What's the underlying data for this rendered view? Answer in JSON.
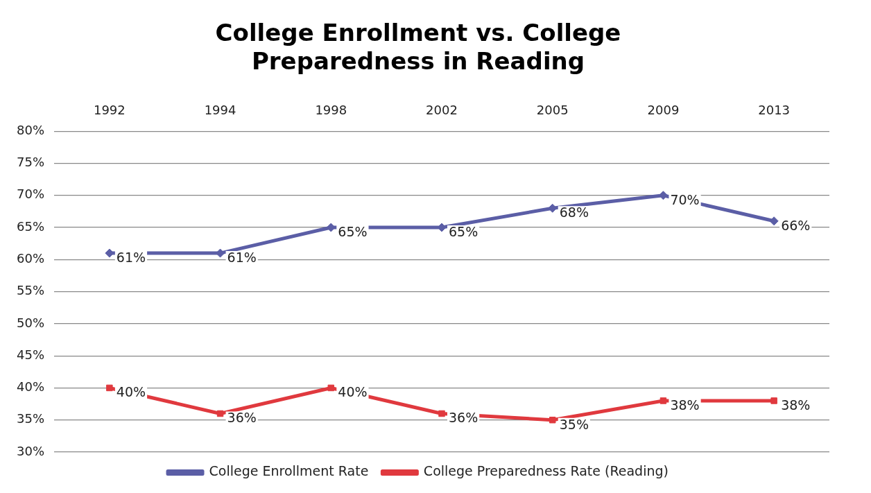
{
  "chart_data": {
    "type": "line",
    "title": "College Enrollment vs. College Preparedness in Reading",
    "categories": [
      "1992",
      "1994",
      "1998",
      "2002",
      "2005",
      "2009",
      "2013"
    ],
    "series": [
      {
        "name": "College Enrollment Rate",
        "color": "#5b5ea6",
        "marker": "diamond",
        "values": [
          61,
          61,
          65,
          65,
          68,
          70,
          66
        ],
        "value_labels": [
          "61%",
          "61%",
          "65%",
          "65%",
          "68%",
          "70%",
          "66%"
        ]
      },
      {
        "name": "College Preparedness Rate (Reading)",
        "color": "#e0393e",
        "marker": "square",
        "values": [
          40,
          36,
          40,
          36,
          35,
          38,
          38
        ],
        "value_labels": [
          "40%",
          "36%",
          "40%",
          "36%",
          "35%",
          "38%",
          "38%"
        ]
      }
    ],
    "ylim": [
      30,
      80
    ],
    "yticks": [
      {
        "value": 30,
        "label": "30%"
      },
      {
        "value": 35,
        "label": "35%"
      },
      {
        "value": 40,
        "label": "40%"
      },
      {
        "value": 45,
        "label": "45%"
      },
      {
        "value": 50,
        "label": "50%"
      },
      {
        "value": 55,
        "label": "55%"
      },
      {
        "value": 60,
        "label": "60%"
      },
      {
        "value": 65,
        "label": "65%"
      },
      {
        "value": 70,
        "label": "70%"
      },
      {
        "value": 75,
        "label": "75%"
      },
      {
        "value": 80,
        "label": "80%"
      }
    ],
    "grid": "y",
    "legend": "bottom",
    "line_style": "solid"
  }
}
